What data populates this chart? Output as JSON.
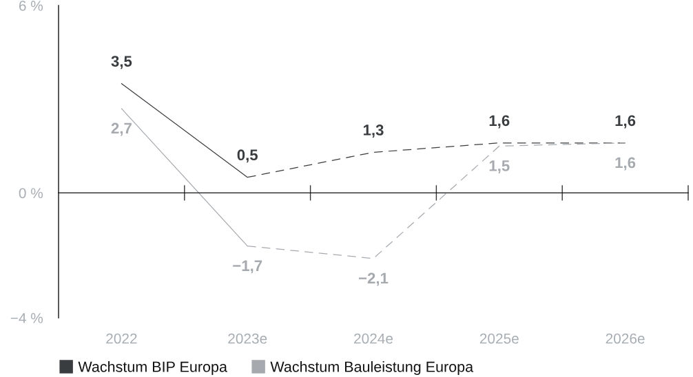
{
  "chart_data": {
    "type": "line",
    "categories": [
      "2022",
      "2023e",
      "2024e",
      "2025e",
      "2026e"
    ],
    "series": [
      {
        "name": "Wachstum BIP Europa",
        "color": "#3a3d40",
        "line_style": "solid",
        "values": [
          3.5,
          0.5,
          null,
          null,
          null
        ],
        "value_labels": [
          "3,5",
          "0,5",
          null,
          null,
          null
        ]
      },
      {
        "color": "#3a3d40",
        "line_style": "dashed",
        "values": [
          null,
          0.5,
          1.3,
          1.6,
          1.6
        ],
        "value_labels": [
          null,
          null,
          "1,3",
          "1,6",
          "1,6"
        ]
      },
      {
        "name": "Wachstum Bauleistung Europa",
        "color": "#a6aaaf",
        "line_style": "solid",
        "values": [
          2.7,
          -1.7,
          null,
          null,
          null
        ],
        "value_labels": [
          "2,7",
          "−1,7",
          null,
          null,
          null
        ]
      },
      {
        "color": "#a6aaaf",
        "line_style": "dashed",
        "values": [
          null,
          -1.7,
          -2.1,
          1.5,
          1.6
        ],
        "value_labels": [
          null,
          null,
          "−2,1",
          "1,5",
          "1,6"
        ]
      }
    ],
    "ylim": [
      -4,
      6
    ],
    "yticks": [
      {
        "value": 6,
        "label": "6 %"
      },
      {
        "value": 0,
        "label": "0 %"
      },
      {
        "value": -4,
        "label": "−4 %"
      }
    ],
    "legend": "bottom"
  }
}
